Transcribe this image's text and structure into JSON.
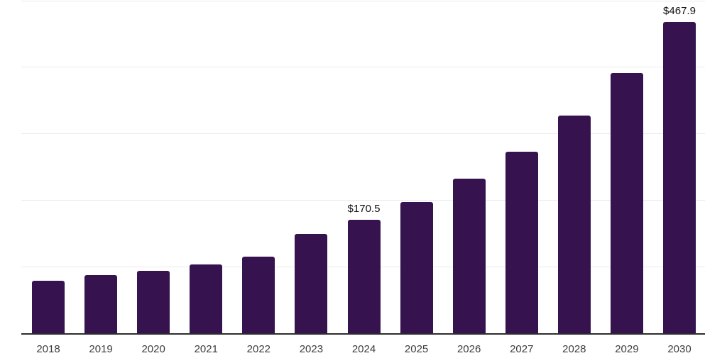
{
  "chart_data": {
    "type": "bar",
    "title": "",
    "xlabel": "",
    "ylabel": "",
    "categories": [
      "2018",
      "2019",
      "2020",
      "2021",
      "2022",
      "2023",
      "2024",
      "2025",
      "2026",
      "2027",
      "2028",
      "2029",
      "2030"
    ],
    "values": [
      79.1,
      87.4,
      94.5,
      103.7,
      115.7,
      149.8,
      170.5,
      197.4,
      232.3,
      273.5,
      327.9,
      391.3,
      467.9
    ],
    "data_labels": [
      {
        "category": "2024",
        "text": "$170.5"
      },
      {
        "category": "2030",
        "text": "$467.9"
      }
    ],
    "ylim": [
      0,
      500
    ],
    "gridline_step": 100,
    "grid": "horizontal",
    "legend": "none",
    "colors": {
      "bar": "#36124E",
      "axis": "#2D2D2D",
      "gridline": "#EBEBEB",
      "tick_label": "#3C3C3C",
      "data_label": "#111111"
    }
  }
}
